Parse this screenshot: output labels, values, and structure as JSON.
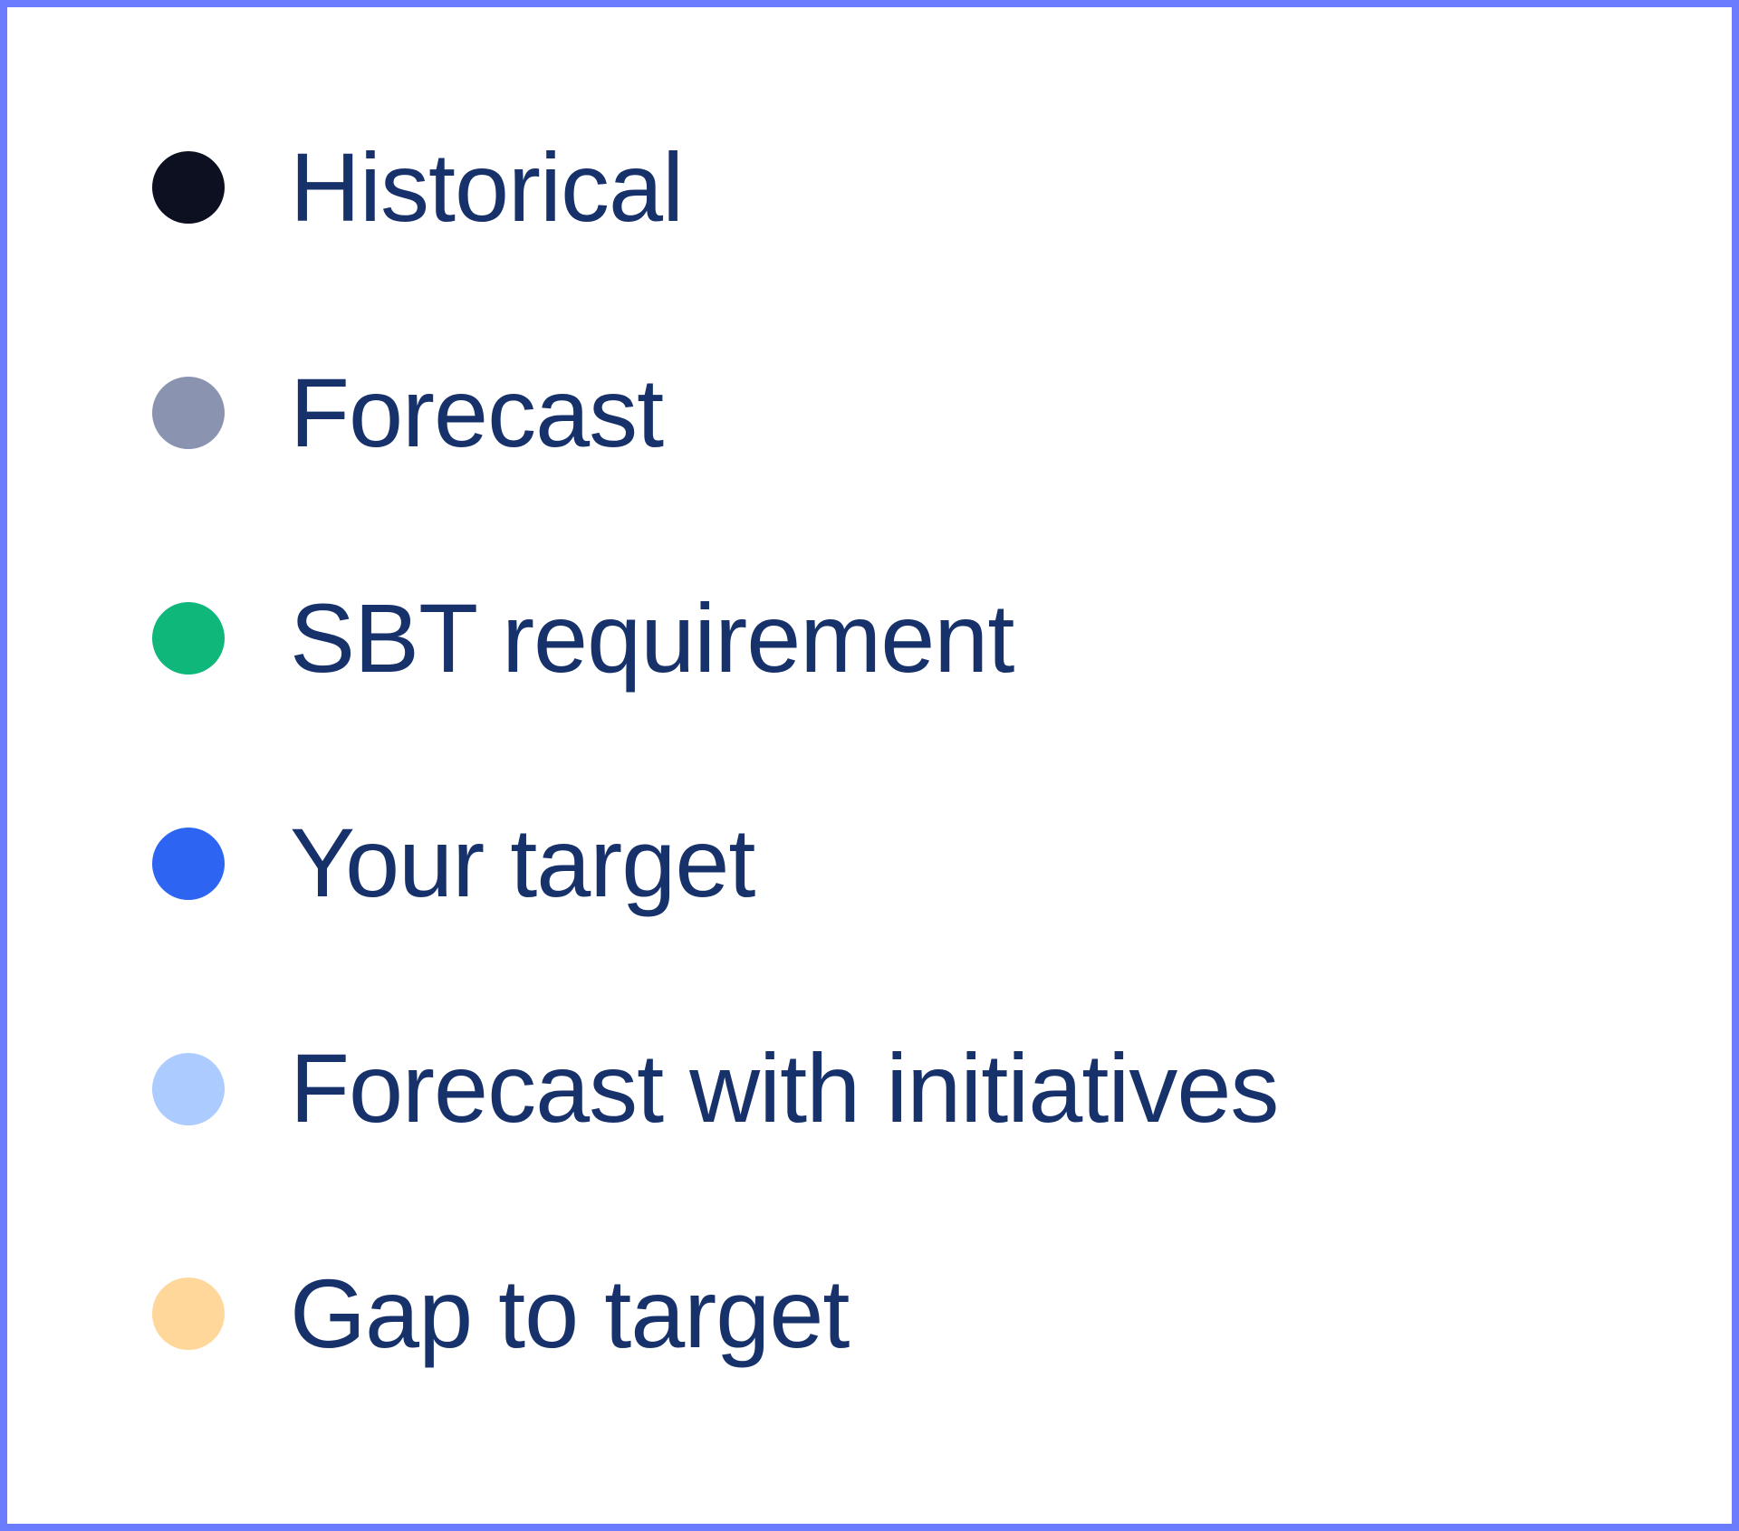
{
  "legend": {
    "type": "legend",
    "background_color": "#ffffff",
    "border_color": "#6b7cff",
    "border_width": 8,
    "label_color": "#17316b",
    "label_fontsize": 108,
    "swatch_diameter": 80,
    "item_gap": 130,
    "swatch_label_gap": 72,
    "items": [
      {
        "label": "Historical",
        "color": "#0c1021"
      },
      {
        "label": "Forecast",
        "color": "#8a94b0"
      },
      {
        "label": "SBT requirement",
        "color": "#0fb87a"
      },
      {
        "label": "Your target",
        "color": "#2d65f2"
      },
      {
        "label": "Forecast with initiatives",
        "color": "#accbff"
      },
      {
        "label": "Gap to target",
        "color": "#ffd79a"
      }
    ]
  }
}
